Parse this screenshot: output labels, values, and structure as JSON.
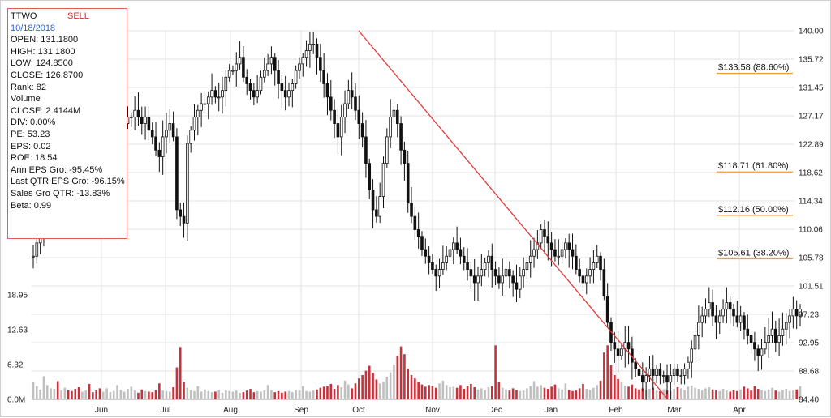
{
  "info": {
    "ticker": "TTWO",
    "signal": "SELL",
    "date": "10/18/2018",
    "open": "OPEN: 131.1800",
    "high": "HIGH: 131.1800",
    "low": "LOW: 124.8500",
    "close": "CLOSE: 126.8700",
    "rank": "Rank: 82",
    "volume_heading": "Volume",
    "volume_close": "CLOSE: 2.4144M",
    "div": "DIV: 0.00%",
    "pe": "PE: 53.23",
    "eps": "EPS: 0.02",
    "roe": "ROE: 18.54",
    "ann_eps": "Ann EPS Gro: -95.45%",
    "last_qtr_eps": "Last QTR EPS Gro: -96.15%",
    "sales_gro": "Sales Gro QTR: -13.83%",
    "beta": "Beta: 0.99"
  },
  "colors": {
    "candle": "#111111",
    "volume_up": "#c0c0c0",
    "volume_down": "#c8303a",
    "trendline": "#e03a3a",
    "fib_line": "#f0a030",
    "grid": "#e3e3e3",
    "info_border": "#e25a5a"
  },
  "chart_data": {
    "type": "candlestick",
    "price_axis_ticks": [
      "140.00",
      "135.72",
      "131.45",
      "127.17",
      "122.89",
      "118.62",
      "114.34",
      "110.06",
      "105.78",
      "101.51",
      "97.23",
      "92.95",
      "88.68",
      "84.40"
    ],
    "ylim": [
      84.4,
      140.0
    ],
    "volume_axis_ticks": [
      "18.95",
      "12.63",
      "6.32",
      "0.0M"
    ],
    "volume_ylim": [
      0,
      25.27
    ],
    "months": [
      "Jun",
      "Jul",
      "Aug",
      "Sep",
      "Oct",
      "Nov",
      "Dec",
      "Jan",
      "Feb",
      "Mar",
      "Apr"
    ],
    "fib_levels": [
      {
        "label": "$133.58 (88.60%)",
        "price": 133.58
      },
      {
        "label": "$118.71 (61.80%)",
        "price": 118.71
      },
      {
        "label": "$112.16 (50.00%)",
        "price": 112.16
      },
      {
        "label": "$105.61 (38.20%)",
        "price": 105.61
      }
    ],
    "trendline": {
      "from": {
        "date": "Oct",
        "price": 140.0
      },
      "to": {
        "date": "Mar",
        "price": 84.4
      }
    },
    "close_series": [
      {
        "month": "Jun",
        "values": [
          106,
          108,
          110,
          112,
          114,
          117,
          119,
          118,
          119,
          120,
          118,
          117,
          116,
          115,
          117,
          118,
          116,
          115,
          114,
          113
        ]
      },
      {
        "month": "Jul",
        "values": [
          118,
          120,
          122,
          124,
          124,
          125,
          126,
          127,
          127,
          128,
          127,
          126,
          127,
          125,
          124,
          122,
          121,
          124,
          125,
          126
        ]
      },
      {
        "month": "Aug",
        "values": [
          124,
          113,
          112,
          111,
          123,
          125,
          127,
          128,
          129,
          129,
          130,
          131,
          130,
          130,
          131,
          133,
          134,
          134,
          135,
          136
        ]
      },
      {
        "month": "Sep",
        "values": [
          133,
          132,
          131,
          130,
          131,
          133,
          134,
          135,
          136,
          134,
          132,
          131,
          130,
          131,
          132,
          134,
          135,
          136,
          137,
          138
        ]
      },
      {
        "month": "Oct",
        "values": [
          138,
          136,
          134,
          132,
          130,
          128,
          126,
          124,
          127,
          129,
          131,
          130,
          128,
          126,
          124,
          120,
          116,
          113,
          112,
          115
        ]
      },
      {
        "month": "Nov",
        "values": [
          120,
          124,
          127,
          128,
          126,
          122,
          120,
          114,
          112,
          110,
          109,
          107,
          106,
          105,
          104,
          103,
          104,
          105,
          106,
          107
        ]
      },
      {
        "month": "Dec",
        "values": [
          108,
          107,
          106,
          105,
          104,
          103,
          102,
          103,
          104,
          105,
          106,
          104,
          103,
          102,
          103,
          104,
          103,
          102,
          101,
          103
        ]
      },
      {
        "month": "Jan",
        "values": [
          104,
          105,
          106,
          107,
          108,
          110,
          109,
          108,
          107,
          106,
          106,
          107,
          108,
          107,
          106,
          104,
          103,
          102,
          103,
          104
        ]
      },
      {
        "month": "Feb",
        "values": [
          105,
          106,
          104,
          100,
          96,
          93,
          92,
          91,
          92,
          93,
          92,
          90,
          89,
          88,
          87,
          88,
          89,
          88,
          89,
          88
        ]
      },
      {
        "month": "Mar",
        "values": [
          88,
          87,
          88,
          89,
          88,
          88,
          89,
          90,
          92,
          94,
          96,
          97,
          98,
          99,
          97,
          96,
          97,
          98,
          99,
          98
        ]
      },
      {
        "month": "Apr",
        "values": [
          97,
          96,
          97,
          95,
          94,
          93,
          92,
          91,
          92,
          93,
          94,
          95,
          93,
          94,
          95,
          96,
          97,
          98,
          97,
          98
        ]
      }
    ],
    "volume_series": [
      {
        "month": "Jun",
        "values": [
          3.1,
          2.4,
          1.8,
          4.2,
          2.6,
          2.0,
          1.9,
          3.3,
          1.6,
          2.1,
          1.7,
          1.5,
          1.9,
          2.2,
          1.4,
          1.6,
          2.8,
          1.3,
          1.7,
          2.0
        ]
      },
      {
        "month": "Jul",
        "values": [
          1.4,
          2.0,
          1.3,
          1.5,
          2.6,
          1.7,
          1.4,
          1.9,
          2.3,
          1.6,
          1.2,
          1.8,
          1.5,
          1.4,
          1.3,
          1.7,
          2.9,
          1.6,
          1.5,
          1.4
        ]
      },
      {
        "month": "Aug",
        "values": [
          2.2,
          5.8,
          9.5,
          3.2,
          2.1,
          1.7,
          1.5,
          2.4,
          1.4,
          1.8,
          1.5,
          1.3,
          1.4,
          1.7,
          1.2,
          1.6,
          1.5,
          1.4,
          1.6,
          1.2
        ]
      },
      {
        "month": "Sep",
        "values": [
          1.3,
          1.6,
          1.9,
          1.3,
          1.5,
          1.4,
          1.6,
          2.6,
          1.7,
          1.3,
          1.5,
          1.2,
          1.4,
          1.5,
          1.3,
          1.7,
          1.6,
          2.4,
          1.5,
          1.4
        ]
      },
      {
        "month": "Oct",
        "values": [
          1.6,
          1.8,
          2.1,
          2.3,
          2.4,
          2.8,
          1.9,
          2.6,
          2.2,
          3.4,
          2.7,
          2.0,
          2.9,
          3.8,
          4.4,
          5.2,
          6.1,
          4.8,
          3.6,
          2.9
        ]
      },
      {
        "month": "Nov",
        "values": [
          3.2,
          4.1,
          4.9,
          6.3,
          7.9,
          9.6,
          8.2,
          5.6,
          4.4,
          3.8,
          3.1,
          2.7,
          2.3,
          2.6,
          2.4,
          2.1,
          2.9,
          3.4,
          2.6,
          2.2
        ]
      },
      {
        "month": "Dec",
        "values": [
          2.3,
          2.1,
          2.6,
          1.9,
          2.4,
          2.8,
          2.2,
          1.8,
          2.0,
          1.7,
          2.2,
          2.4,
          9.8,
          3.1,
          2.1,
          1.8,
          1.6,
          2.0,
          1.7,
          1.5
        ]
      },
      {
        "month": "Jan",
        "values": [
          1.6,
          2.0,
          2.4,
          3.3,
          2.3,
          2.6,
          2.1,
          1.9,
          2.3,
          2.7,
          2.0,
          1.8,
          2.9,
          1.7,
          1.5,
          1.6,
          2.0,
          2.8,
          1.9,
          1.7
        ]
      },
      {
        "month": "Feb",
        "values": [
          2.1,
          2.6,
          3.4,
          8.5,
          9.8,
          6.2,
          4.4,
          3.7,
          3.1,
          2.5,
          2.3,
          2.7,
          2.0,
          1.8,
          2.0,
          1.7,
          1.9,
          2.1,
          1.6,
          1.5
        ]
      },
      {
        "month": "Mar",
        "values": [
          1.8,
          1.6,
          1.5,
          1.9,
          2.2,
          2.0,
          1.7,
          2.3,
          2.5,
          2.1,
          1.9,
          1.6,
          2.0,
          2.2,
          1.8,
          1.7,
          1.5,
          1.9,
          1.6,
          1.4
        ]
      },
      {
        "month": "Apr",
        "values": [
          1.7,
          1.5,
          1.8,
          2.3,
          2.0,
          1.6,
          2.4,
          1.9,
          1.7,
          1.5,
          1.8,
          2.1,
          1.6,
          1.4,
          1.7,
          1.9,
          1.5,
          1.6,
          1.8,
          2.4
        ]
      }
    ]
  }
}
